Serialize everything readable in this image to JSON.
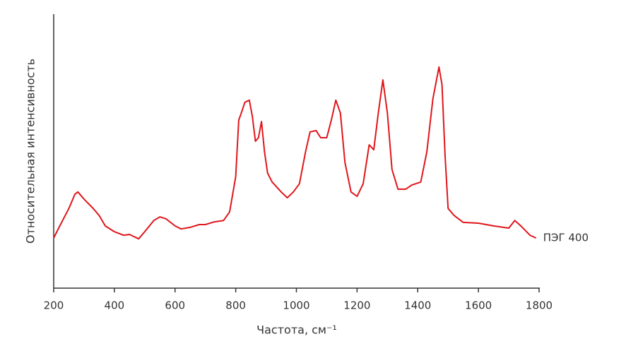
{
  "chart_data": {
    "type": "line",
    "xlabel": "Частота, см⁻¹",
    "ylabel": "Относительная интенсивность",
    "x": [
      200,
      220,
      250,
      270,
      280,
      300,
      330,
      350,
      370,
      400,
      430,
      450,
      480,
      500,
      530,
      550,
      570,
      600,
      620,
      650,
      680,
      700,
      730,
      760,
      780,
      800,
      810,
      820,
      830,
      845,
      855,
      865,
      875,
      885,
      895,
      905,
      920,
      950,
      970,
      990,
      1010,
      1030,
      1045,
      1065,
      1080,
      1100,
      1115,
      1130,
      1145,
      1160,
      1180,
      1200,
      1220,
      1240,
      1255,
      1270,
      1285,
      1300,
      1315,
      1335,
      1360,
      1380,
      1410,
      1430,
      1450,
      1470,
      1480,
      1490,
      1500,
      1520,
      1550,
      1600,
      1650,
      1700,
      1720,
      1740,
      1770,
      1790
    ],
    "series": [
      {
        "name": "ПЭГ 400",
        "color": "#e0161b",
        "values": [
          18.3,
          22.7,
          29.1,
          34.3,
          35.1,
          32.5,
          29.1,
          26.5,
          22.7,
          20.6,
          19.3,
          19.6,
          18.0,
          20.6,
          24.7,
          26.0,
          25.3,
          22.7,
          21.6,
          22.2,
          23.2,
          23.2,
          24.2,
          24.7,
          27.8,
          40.7,
          61.3,
          64.4,
          67.8,
          68.6,
          62.6,
          53.6,
          54.9,
          60.8,
          49.7,
          42.0,
          38.7,
          35.1,
          33.0,
          35.1,
          38.1,
          49.7,
          57.0,
          57.5,
          54.9,
          54.9,
          61.3,
          68.6,
          63.9,
          45.9,
          35.1,
          33.5,
          38.1,
          52.3,
          50.5,
          63.9,
          76.0,
          63.9,
          43.3,
          36.1,
          36.1,
          37.6,
          38.7,
          49.7,
          69.1,
          80.7,
          74.2,
          48.5,
          29.1,
          26.5,
          24.0,
          23.7,
          22.7,
          21.9,
          24.7,
          22.7,
          19.3,
          18.3
        ]
      }
    ],
    "xlim": [
      200,
      1800
    ],
    "xticks": [
      200,
      400,
      600,
      800,
      1000,
      1200,
      1400,
      1600,
      1800
    ],
    "ylim": [
      0,
      100
    ],
    "grid": false
  }
}
